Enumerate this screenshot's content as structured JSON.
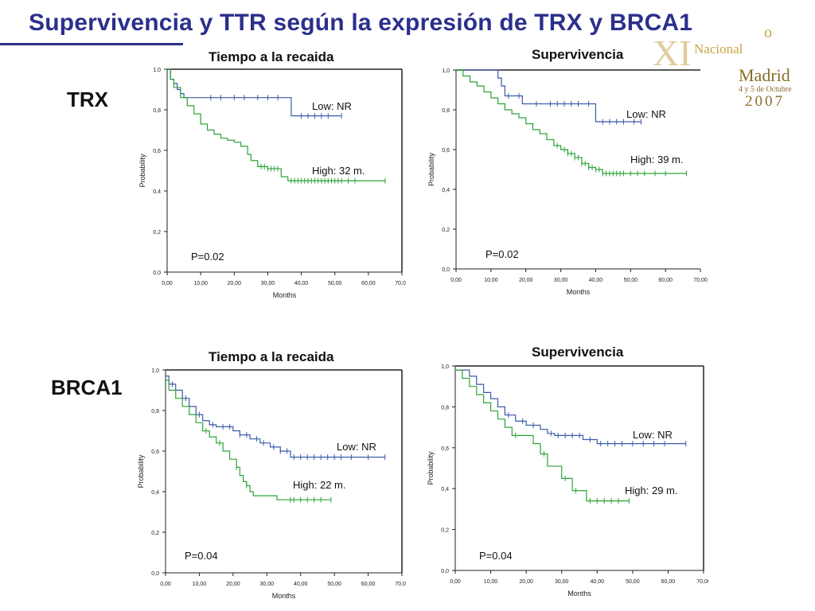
{
  "slide": {
    "title": "Supervivencia y TTR según la expresión de TRX y BRCA1",
    "row_labels": [
      "TRX",
      "BRCA1"
    ],
    "logo": {
      "line1": "o",
      "line2": "Nacional",
      "line3": "Madrid",
      "line4": "4 y 5 de Octubre",
      "line5": "2007",
      "badge": "XI"
    }
  },
  "colors": {
    "low": "#3b5aa8",
    "high": "#2ea33a",
    "title": "#2b2f8c",
    "axis": "#222222"
  },
  "chart_data": [
    {
      "id": "trx-ttr",
      "type": "line",
      "title": "Tiempo a la recaida",
      "xlabel": "Months",
      "ylabel": "Probability",
      "xlim": [
        0,
        70
      ],
      "ylim": [
        0,
        1
      ],
      "x_ticks": [
        "0,00",
        "10,00",
        "20,00",
        "30,00",
        "40,00",
        "50,00",
        "60,00",
        "70,00"
      ],
      "y_ticks": [
        "0,0",
        "0,2",
        "0,4",
        "0,6",
        "0,8",
        "1,0"
      ],
      "p_value": "P=0.02",
      "series": [
        {
          "name": "Low",
          "label": "Low: NR",
          "color": "low",
          "x": [
            0,
            1,
            2,
            3,
            4,
            5,
            9,
            10,
            37,
            52
          ],
          "y": [
            1.0,
            0.95,
            0.93,
            0.9,
            0.88,
            0.86,
            0.86,
            0.86,
            0.77,
            0.77
          ],
          "censored_x": [
            4,
            13,
            16,
            20,
            23,
            27,
            30,
            33,
            40,
            42,
            44,
            46,
            48,
            52
          ]
        },
        {
          "name": "High",
          "label": "High: 32 m.",
          "color": "high",
          "x": [
            0,
            1,
            2,
            4,
            6,
            8,
            10,
            12,
            14,
            16,
            18,
            20,
            22,
            24,
            25,
            27,
            30,
            34,
            36,
            65
          ],
          "y": [
            1.0,
            0.95,
            0.91,
            0.86,
            0.82,
            0.78,
            0.73,
            0.7,
            0.68,
            0.66,
            0.65,
            0.64,
            0.62,
            0.58,
            0.55,
            0.52,
            0.51,
            0.47,
            0.45,
            0.45
          ],
          "censored_x": [
            28,
            29,
            30,
            31,
            32,
            33,
            37,
            38,
            39,
            40,
            41,
            42,
            43,
            44,
            45,
            46,
            47,
            48,
            49,
            50,
            51,
            52,
            54,
            56,
            65
          ]
        }
      ]
    },
    {
      "id": "trx-os",
      "type": "line",
      "title": "Supervivencia",
      "xlabel": "Months",
      "ylabel": "Probability",
      "xlim": [
        0,
        70
      ],
      "ylim": [
        0,
        1
      ],
      "x_ticks": [
        "0,00",
        "10,00",
        "20,00",
        "30,00",
        "40,00",
        "50,00",
        "60,00",
        "70,00"
      ],
      "y_ticks": [
        "0,0",
        "0,2",
        "0,4",
        "0,6",
        "0,8",
        "1,0"
      ],
      "p_value": "P=0.02",
      "series": [
        {
          "name": "Low",
          "label": "Low: NR",
          "color": "low",
          "x": [
            0,
            12,
            13,
            14,
            16,
            19,
            20,
            40,
            53
          ],
          "y": [
            1.0,
            0.96,
            0.92,
            0.87,
            0.87,
            0.83,
            0.83,
            0.74,
            0.74
          ],
          "censored_x": [
            15,
            18,
            23,
            27,
            29,
            31,
            33,
            35,
            38,
            42,
            44,
            46,
            48,
            51,
            53
          ]
        },
        {
          "name": "High",
          "label": "High: 39 m.",
          "color": "high",
          "x": [
            0,
            2,
            4,
            6,
            8,
            10,
            12,
            14,
            16,
            18,
            20,
            22,
            24,
            26,
            28,
            30,
            32,
            34,
            36,
            38,
            40,
            42,
            66
          ],
          "y": [
            1.0,
            0.97,
            0.94,
            0.92,
            0.89,
            0.86,
            0.83,
            0.8,
            0.78,
            0.76,
            0.73,
            0.7,
            0.68,
            0.65,
            0.62,
            0.6,
            0.58,
            0.56,
            0.53,
            0.51,
            0.5,
            0.48,
            0.48
          ],
          "censored_x": [
            29,
            31,
            32,
            33,
            34,
            35,
            36,
            37,
            38,
            39,
            40,
            41,
            42,
            43,
            44,
            45,
            46,
            47,
            48,
            50,
            52,
            54,
            57,
            60,
            66
          ]
        }
      ]
    },
    {
      "id": "brca1-ttr",
      "type": "line",
      "title": "Tiempo a la recaida",
      "xlabel": "Months",
      "ylabel": "Probability",
      "xlim": [
        0,
        70
      ],
      "ylim": [
        0,
        1
      ],
      "x_ticks": [
        "0,00",
        "10,00",
        "20,00",
        "30,00",
        "40,00",
        "50,00",
        "60,00",
        "70,00"
      ],
      "y_ticks": [
        "0,0",
        "0,2",
        "0,4",
        "0,6",
        "0,8",
        "1,0"
      ],
      "p_value": "P=0.04",
      "series": [
        {
          "name": "Low",
          "label": "Low: NR",
          "color": "low",
          "x": [
            0,
            1,
            3,
            5,
            7,
            9,
            11,
            13,
            15,
            20,
            22,
            25,
            28,
            31,
            34,
            37,
            65
          ],
          "y": [
            0.97,
            0.93,
            0.9,
            0.86,
            0.82,
            0.78,
            0.75,
            0.73,
            0.72,
            0.7,
            0.68,
            0.66,
            0.64,
            0.62,
            0.6,
            0.57,
            0.57
          ],
          "censored_x": [
            2,
            6,
            10,
            14,
            17,
            19,
            22,
            24,
            27,
            29,
            32,
            34,
            36,
            38,
            40,
            42,
            44,
            46,
            48,
            50,
            52,
            55,
            60,
            65
          ]
        },
        {
          "name": "High",
          "label": "High: 22 m.",
          "color": "high",
          "x": [
            0,
            1,
            3,
            5,
            7,
            9,
            11,
            13,
            15,
            17,
            19,
            21,
            22,
            23,
            24,
            25,
            26,
            33,
            49
          ],
          "y": [
            0.95,
            0.9,
            0.86,
            0.82,
            0.78,
            0.74,
            0.7,
            0.67,
            0.64,
            0.6,
            0.56,
            0.52,
            0.48,
            0.45,
            0.43,
            0.4,
            0.38,
            0.36,
            0.36
          ],
          "censored_x": [
            12,
            16,
            21,
            24,
            37,
            38,
            40,
            42,
            44,
            46,
            49
          ]
        }
      ]
    },
    {
      "id": "brca1-os",
      "type": "line",
      "title": "Supervivencia",
      "xlabel": "Months",
      "ylabel": "Probability",
      "xlim": [
        0,
        70
      ],
      "ylim": [
        0,
        1
      ],
      "x_ticks": [
        "0,00",
        "10,00",
        "20,00",
        "30,00",
        "40,00",
        "50,00",
        "60,00",
        "70,00"
      ],
      "y_ticks": [
        "0,0",
        "0,2",
        "0,4",
        "0,6",
        "0,8",
        "1,0"
      ],
      "p_value": "P=0.04",
      "series": [
        {
          "name": "Low",
          "label": "Low: NR",
          "color": "low",
          "x": [
            0,
            4,
            6,
            8,
            10,
            12,
            14,
            17,
            20,
            24,
            26,
            28,
            36,
            40,
            65
          ],
          "y": [
            0.98,
            0.95,
            0.91,
            0.87,
            0.84,
            0.8,
            0.76,
            0.73,
            0.71,
            0.69,
            0.67,
            0.66,
            0.64,
            0.62,
            0.62
          ],
          "censored_x": [
            15,
            19,
            22,
            27,
            29,
            31,
            33,
            35,
            38,
            41,
            43,
            45,
            47,
            50,
            53,
            56,
            59,
            65
          ]
        },
        {
          "name": "High",
          "label": "High: 29 m.",
          "color": "high",
          "x": [
            0,
            2,
            4,
            6,
            8,
            10,
            12,
            14,
            16,
            22,
            24,
            26,
            30,
            33,
            37,
            49
          ],
          "y": [
            0.98,
            0.94,
            0.9,
            0.86,
            0.82,
            0.78,
            0.74,
            0.7,
            0.66,
            0.62,
            0.57,
            0.51,
            0.45,
            0.39,
            0.34,
            0.34
          ],
          "censored_x": [
            17,
            25,
            31,
            34,
            38,
            40,
            42,
            44,
            46,
            49
          ]
        }
      ]
    }
  ]
}
